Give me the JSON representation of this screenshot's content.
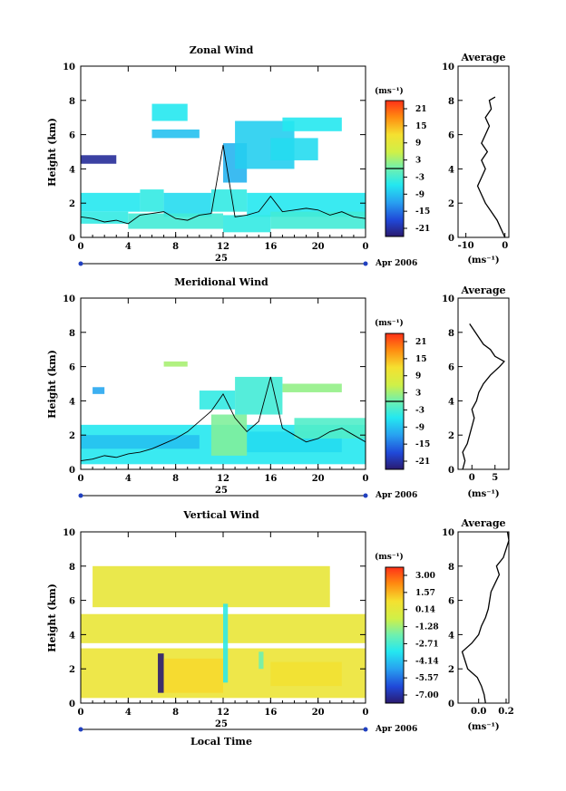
{
  "figure": {
    "xlabel": "Local Time",
    "x_ticks": [
      "0",
      "4",
      "8",
      "12",
      "16",
      "20",
      "0"
    ],
    "day_label": "25",
    "month_label": "Apr 2006",
    "ylabel": "Height (km)",
    "y_ticks": [
      "0",
      "2",
      "4",
      "6",
      "8",
      "10"
    ]
  },
  "chart_data": [
    {
      "type": "heatmap",
      "title": "Zonal Wind",
      "colorbar": {
        "label": "(ms⁻¹)",
        "ticks": [
          "21",
          "15",
          "9",
          "3",
          "-3",
          "-9",
          "-15",
          "-21"
        ]
      },
      "x": [
        0,
        24
      ],
      "xlim": [
        0,
        24
      ],
      "ylim": [
        0,
        10
      ],
      "cells": [
        [
          0,
          5,
          1.5,
          2.6,
          -5
        ],
        [
          5,
          7,
          1.5,
          2.8,
          -4
        ],
        [
          7,
          11,
          1.2,
          2.6,
          -6
        ],
        [
          11,
          14,
          1.5,
          2.8,
          -4
        ],
        [
          14,
          24,
          1.2,
          2.6,
          -5
        ],
        [
          0,
          4,
          0.8,
          1.5,
          -4
        ],
        [
          4,
          12,
          0.5,
          1.4,
          -3
        ],
        [
          12,
          16,
          0.3,
          1.3,
          -4
        ],
        [
          16,
          24,
          0.5,
          1.5,
          -3
        ],
        [
          0,
          3,
          4.3,
          4.8,
          -19
        ],
        [
          12,
          14,
          3.2,
          5.5,
          -9
        ],
        [
          13,
          18,
          4,
          6.8,
          -7
        ],
        [
          16,
          20,
          4.5,
          5.8,
          -6
        ],
        [
          6,
          10,
          5.8,
          6.3,
          -8
        ],
        [
          17,
          22,
          6.2,
          7,
          -5
        ],
        [
          6,
          9,
          6.8,
          7.8,
          -5
        ]
      ],
      "zero_contour_x": [
        0,
        1,
        2,
        3,
        4,
        5,
        6,
        7,
        8,
        9,
        10,
        11,
        12,
        13,
        14,
        15,
        16,
        17,
        18,
        19,
        20,
        21,
        22,
        23,
        24
      ],
      "zero_contour_y": [
        1.2,
        1.1,
        0.9,
        1,
        0.8,
        1.3,
        1.4,
        1.5,
        1.1,
        1.0,
        1.3,
        1.4,
        5.4,
        1.2,
        1.3,
        1.5,
        2.4,
        1.5,
        1.6,
        1.7,
        1.6,
        1.3,
        1.5,
        1.2,
        1.1
      ],
      "avg_profile": {
        "title": "Average",
        "xlabel": "(ms⁻¹)",
        "x_ticks": [
          "-10",
          "0"
        ],
        "xlim": [
          -12,
          1
        ],
        "height": [
          0,
          0.5,
          1,
          1.5,
          2,
          2.5,
          3,
          3.5,
          4,
          4.5,
          5,
          5.5,
          6,
          6.5,
          7,
          7.5,
          8,
          8.2
        ],
        "value": [
          0,
          -1,
          -2,
          -3.5,
          -5,
          -6,
          -7,
          -6,
          -5,
          -6,
          -4.5,
          -6,
          -5,
          -4,
          -5,
          -3.5,
          -4,
          -2.5
        ]
      }
    },
    {
      "type": "heatmap",
      "title": "Meridional Wind",
      "colorbar": {
        "label": "(ms⁻¹)",
        "ticks": [
          "21",
          "15",
          "9",
          "3",
          "-3",
          "-9",
          "-15",
          "-21"
        ]
      },
      "x": [
        0,
        24
      ],
      "xlim": [
        0,
        24
      ],
      "ylim": [
        0,
        10
      ],
      "cells": [
        [
          0,
          24,
          0.3,
          2.6,
          -5
        ],
        [
          0,
          10,
          1.2,
          2,
          -8
        ],
        [
          14,
          22,
          1.0,
          2.2,
          -6
        ],
        [
          11,
          14,
          0.8,
          3.2,
          1
        ],
        [
          10,
          13,
          3.5,
          4.6,
          -4
        ],
        [
          17,
          22,
          4.5,
          5,
          2
        ],
        [
          13,
          17,
          3.2,
          5.4,
          -3
        ],
        [
          7,
          9,
          6,
          6.3,
          3
        ],
        [
          1,
          2,
          4.4,
          4.8,
          -10
        ],
        [
          18,
          24,
          1.8,
          3,
          -2
        ]
      ],
      "zero_contour_x": [
        0,
        1,
        2,
        3,
        4,
        5,
        6,
        7,
        8,
        9,
        10,
        11,
        12,
        13,
        14,
        15,
        16,
        17,
        18,
        19,
        20,
        21,
        22,
        23,
        24
      ],
      "zero_contour_y": [
        0.5,
        0.6,
        0.8,
        0.7,
        0.9,
        1.0,
        1.2,
        1.5,
        1.8,
        2.2,
        2.8,
        3.4,
        4.4,
        3.0,
        2.2,
        2.8,
        5.4,
        2.4,
        2.0,
        1.6,
        1.8,
        2.2,
        2.4,
        2.0,
        1.6
      ],
      "avg_profile": {
        "title": "Average",
        "xlabel": "(ms⁻¹)",
        "x_ticks": [
          "0",
          "5"
        ],
        "xlim": [
          -3,
          8
        ],
        "height": [
          0,
          0.5,
          1,
          1.5,
          2,
          2.5,
          3,
          3.5,
          4,
          4.5,
          5,
          5.5,
          6,
          6.3,
          6.6,
          7,
          7.3,
          8.5
        ],
        "value": [
          -2,
          -1.5,
          -2,
          -1,
          -0.5,
          0,
          0.5,
          0,
          1,
          1.5,
          2.5,
          4,
          6,
          7,
          5,
          4,
          2.5,
          -0.5
        ]
      }
    },
    {
      "type": "heatmap",
      "title": "Vertical Wind",
      "colorbar": {
        "label": "(ms⁻¹)",
        "ticks": [
          "3.00",
          "1.57",
          "0.14",
          "-1.28",
          "-2.71",
          "-4.14",
          "-5.57",
          "-7.00"
        ]
      },
      "x": [
        0,
        24
      ],
      "xlim": [
        0,
        24
      ],
      "ylim": [
        0,
        10
      ],
      "cells": [
        [
          0,
          24,
          0.3,
          3.2,
          0.2
        ],
        [
          0,
          24,
          3.5,
          5.2,
          0.1
        ],
        [
          1,
          21,
          5.6,
          8,
          0.05
        ],
        [
          6.5,
          7,
          0.6,
          2.9,
          -7
        ],
        [
          12,
          12.4,
          1.2,
          5.8,
          -3
        ],
        [
          15,
          15.4,
          2,
          3,
          -2
        ],
        [
          7,
          12,
          0.6,
          2.6,
          0.6
        ],
        [
          16,
          22,
          1,
          2.4,
          0.4
        ]
      ],
      "avg_profile": {
        "title": "Average",
        "xlabel": "(ms⁻¹)",
        "x_ticks": [
          "0.0",
          "0.2"
        ],
        "xlim": [
          -0.15,
          0.22
        ],
        "height": [
          0,
          0.5,
          1,
          1.5,
          2,
          2.5,
          3,
          3.5,
          4,
          4.5,
          5,
          5.5,
          6,
          6.5,
          7,
          7.5,
          8,
          8.5,
          9,
          9.5,
          10
        ],
        "value": [
          0.05,
          0.04,
          0.02,
          -0.01,
          -0.08,
          -0.1,
          -0.12,
          -0.05,
          0.0,
          0.02,
          0.05,
          0.07,
          0.08,
          0.09,
          0.12,
          0.15,
          0.13,
          0.18,
          0.2,
          0.22,
          0.21
        ]
      }
    }
  ]
}
